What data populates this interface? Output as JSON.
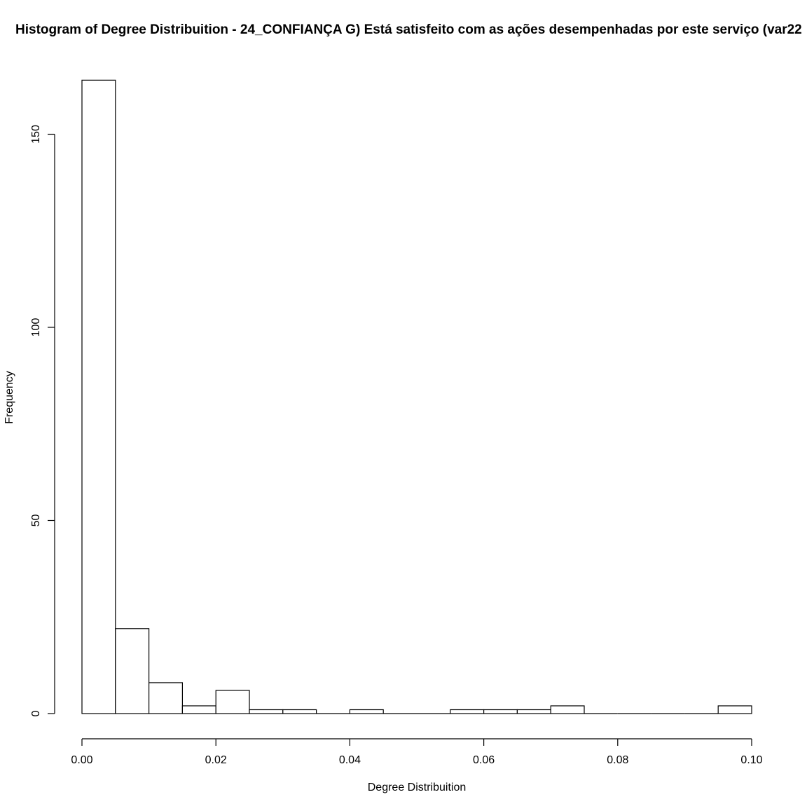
{
  "chart_data": {
    "type": "bar",
    "title": "Histogram of Degree Distribuition - 24_CONFIANÇA G) Está satisfeito com as ações desempenhadas por este serviço (var22",
    "xlabel": "Degree Distribuition",
    "ylabel": "Frequency",
    "xlim": [
      0,
      0.1
    ],
    "ylim": [
      0,
      150
    ],
    "x_ticks": [
      "0.00",
      "0.02",
      "0.04",
      "0.06",
      "0.08",
      "0.10"
    ],
    "y_ticks": [
      "0",
      "50",
      "100",
      "150"
    ],
    "bin_width": 0.005,
    "bins": [
      {
        "start": 0.0,
        "end": 0.005,
        "count": 164
      },
      {
        "start": 0.005,
        "end": 0.01,
        "count": 22
      },
      {
        "start": 0.01,
        "end": 0.015,
        "count": 8
      },
      {
        "start": 0.015,
        "end": 0.02,
        "count": 2
      },
      {
        "start": 0.02,
        "end": 0.025,
        "count": 6
      },
      {
        "start": 0.025,
        "end": 0.03,
        "count": 1
      },
      {
        "start": 0.03,
        "end": 0.035,
        "count": 1
      },
      {
        "start": 0.035,
        "end": 0.04,
        "count": 0
      },
      {
        "start": 0.04,
        "end": 0.045,
        "count": 1
      },
      {
        "start": 0.045,
        "end": 0.05,
        "count": 0
      },
      {
        "start": 0.05,
        "end": 0.055,
        "count": 0
      },
      {
        "start": 0.055,
        "end": 0.06,
        "count": 1
      },
      {
        "start": 0.06,
        "end": 0.065,
        "count": 1
      },
      {
        "start": 0.065,
        "end": 0.07,
        "count": 1
      },
      {
        "start": 0.07,
        "end": 0.075,
        "count": 2
      },
      {
        "start": 0.075,
        "end": 0.08,
        "count": 0
      },
      {
        "start": 0.08,
        "end": 0.085,
        "count": 0
      },
      {
        "start": 0.085,
        "end": 0.09,
        "count": 0
      },
      {
        "start": 0.09,
        "end": 0.095,
        "count": 0
      },
      {
        "start": 0.095,
        "end": 0.1,
        "count": 2
      }
    ],
    "grid": false,
    "bar_fill": "#ffffff",
    "bar_stroke": "#000000"
  }
}
